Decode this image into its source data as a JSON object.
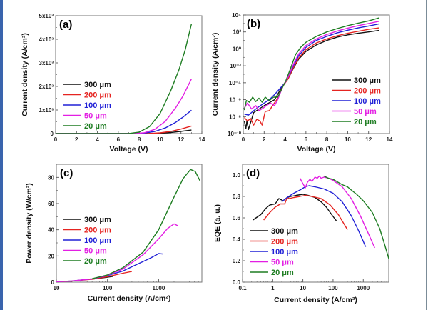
{
  "series_styles": [
    {
      "name": "300 μm",
      "color": "#111111"
    },
    {
      "name": "200 μm",
      "color": "#e52421"
    },
    {
      "name": "100 μm",
      "color": "#2020d6"
    },
    {
      "name": "50 μm",
      "color": "#e31fe3"
    },
    {
      "name": "20 μm",
      "color": "#1e7d22"
    }
  ],
  "chart_data": [
    {
      "id": "a",
      "panel_label": "(a)",
      "type": "line",
      "xlabel": "Voltage (V)",
      "ylabel": "Current density (A/cm²)",
      "xscale": "linear",
      "yscale": "linear",
      "xlim": [
        0,
        14
      ],
      "ylim": [
        0,
        5000
      ],
      "xticks": [
        0,
        2,
        4,
        6,
        8,
        10,
        12,
        14
      ],
      "xtick_labels": [
        "0",
        "2",
        "4",
        "6",
        "8",
        "10",
        "12",
        "14"
      ],
      "yticks": [
        0,
        1000,
        2000,
        3000,
        4000,
        5000
      ],
      "ytick_labels": [
        "0",
        "1x10³",
        "2x10³",
        "3x10³",
        "4x10³",
        "5x10³"
      ],
      "legend": "left-middle",
      "series": [
        {
          "name": "300 μm",
          "x": [
            0,
            8,
            9,
            10,
            11,
            12,
            13
          ],
          "y": [
            0,
            0,
            3,
            15,
            45,
            95,
            150
          ]
        },
        {
          "name": "200 μm",
          "x": [
            0,
            8,
            9,
            10,
            11,
            12,
            13
          ],
          "y": [
            0,
            0,
            6,
            30,
            90,
            190,
            320
          ]
        },
        {
          "name": "100 μm",
          "x": [
            0,
            7.5,
            8.5,
            9.5,
            10.5,
            11.5,
            12.2,
            13
          ],
          "y": [
            0,
            0,
            20,
            90,
            240,
            480,
            700,
            990
          ]
        },
        {
          "name": "50 μm",
          "x": [
            0,
            7.5,
            8.5,
            9.5,
            10.5,
            11.5,
            12.2,
            13
          ],
          "y": [
            0,
            0,
            35,
            180,
            520,
            1100,
            1600,
            2320
          ]
        },
        {
          "name": "20 μm",
          "x": [
            0,
            7,
            8,
            9,
            10,
            11,
            11.8,
            12.4,
            13
          ],
          "y": [
            0,
            0,
            60,
            300,
            850,
            1800,
            2700,
            3550,
            4650
          ]
        }
      ]
    },
    {
      "id": "b",
      "panel_label": "(b)",
      "type": "line",
      "xlabel": "Voltage (V)",
      "ylabel": "Current density (A/cm²)",
      "xscale": "linear",
      "yscale": "log",
      "xlim": [
        0,
        14
      ],
      "ylim": [
        1e-10,
        10000.0
      ],
      "xticks": [
        0,
        2,
        4,
        6,
        8,
        10,
        12,
        14
      ],
      "xtick_labels": [
        "0",
        "2",
        "4",
        "6",
        "8",
        "10",
        "12",
        "14"
      ],
      "yticks": [
        1e-10,
        1e-08,
        1e-06,
        0.0001,
        0.01,
        1,
        100,
        10000
      ],
      "ytick_labels": [
        "10⁻¹⁰",
        "10⁻⁸",
        "10⁻⁶",
        "10⁻⁴",
        "10⁻²",
        "10⁰",
        "10²",
        "10⁴"
      ],
      "legend": "bottom-right",
      "series": [
        {
          "name": "300 μm",
          "x": [
            0.1,
            0.25,
            0.35,
            0.5,
            1,
            2,
            3,
            3.8,
            4.3,
            4.8,
            5.3,
            6,
            7,
            8,
            9,
            10,
            11,
            12,
            13
          ],
          "y": [
            3e-09,
            4e-10,
            3e-09,
            3e-10,
            3e-08,
            2e-07,
            1e-06,
            5e-05,
            0.0003,
            0.005,
            0.06,
            0.5,
            3,
            10,
            25,
            45,
            70,
            100,
            150
          ]
        },
        {
          "name": "200 μm",
          "x": [
            0.1,
            0.4,
            0.7,
            1,
            1.3,
            1.6,
            1.8,
            2.1,
            2.5,
            2.8,
            3.2,
            3.8,
            4.3,
            4.8,
            5.3,
            6,
            7,
            8,
            9,
            10,
            11,
            12,
            13
          ],
          "y": [
            8e-09,
            3e-09,
            6e-09,
            1e-09,
            5e-09,
            3e-09,
            1e-09,
            4e-08,
            5e-08,
            2e-07,
            1e-06,
            4e-05,
            0.0003,
            0.006,
            0.08,
            0.8,
            5,
            15,
            35,
            70,
            120,
            200,
            300
          ]
        },
        {
          "name": "100 μm",
          "x": [
            0.1,
            0.5,
            1,
            1.5,
            2,
            2.5,
            3,
            3.5,
            4,
            4.4,
            4.8,
            5.3,
            6,
            7,
            8,
            9,
            10,
            11,
            12,
            13
          ],
          "y": [
            2e-08,
            1.5e-08,
            5e-08,
            1.5e-07,
            4e-07,
            1e-06,
            4e-06,
            2e-05,
            0.0001,
            0.0008,
            0.01,
            0.15,
            1.5,
            10,
            30,
            80,
            160,
            300,
            500,
            900
          ]
        },
        {
          "name": "50 μm",
          "x": [
            0.1,
            0.4,
            0.8,
            1.2,
            1.5,
            1.9,
            2.2,
            2.6,
            3,
            3.3,
            3.8,
            4.3,
            4.8,
            5.3,
            6,
            7,
            8,
            9,
            10,
            11,
            12,
            13
          ],
          "y": [
            1e-07,
            4e-07,
            8e-08,
            2e-07,
            5e-08,
            1e-07,
            2e-07,
            4e-07,
            2e-07,
            1e-06,
            4e-05,
            0.0005,
            0.015,
            0.25,
            2.5,
            15,
            50,
            130,
            280,
            550,
            1000,
            1800
          ]
        },
        {
          "name": "20 μm",
          "x": [
            0.1,
            0.3,
            0.6,
            0.9,
            1.2,
            1.5,
            1.8,
            2.1,
            2.5,
            2.9,
            3.3,
            3.7,
            4.1,
            4.5,
            5,
            5.5,
            6,
            7,
            8,
            9,
            10,
            11,
            12,
            13
          ],
          "y": [
            6e-08,
            8e-07,
            5e-07,
            2e-06,
            6e-07,
            1.5e-06,
            5e-07,
            2e-06,
            8e-07,
            2e-06,
            2e-06,
            2e-05,
            0.0002,
            0.004,
            0.2,
            1.5,
            6,
            30,
            100,
            250,
            550,
            1100,
            2000,
            4500
          ]
        }
      ]
    },
    {
      "id": "c",
      "panel_label": "(c)",
      "type": "line",
      "xlabel": "Current density (A/cm²)",
      "ylabel": "Power density (W/cm²)",
      "xscale": "log",
      "yscale": "linear",
      "xlim": [
        10,
        7000
      ],
      "ylim": [
        0,
        90
      ],
      "xticks": [
        10,
        100,
        1000
      ],
      "xtick_labels": [
        "10",
        "100",
        "1000"
      ],
      "yticks": [
        0,
        20,
        40,
        60,
        80
      ],
      "ytick_labels": [
        "0",
        "20",
        "40",
        "60",
        "80"
      ],
      "legend": "left-middle",
      "series": [
        {
          "name": "300 μm",
          "x": [
            50,
            70,
            100,
            130
          ],
          "y": [
            2.3,
            3.0,
            3.8,
            4.5
          ]
        },
        {
          "name": "200 μm",
          "x": [
            10,
            20,
            50,
            100,
            200,
            300
          ],
          "y": [
            0.3,
            0.8,
            2.2,
            4.2,
            6.8,
            8.2
          ]
        },
        {
          "name": "100 μm",
          "x": [
            10,
            20,
            50,
            100,
            200,
            400,
            700,
            1000,
            1200
          ],
          "y": [
            0.4,
            0.9,
            2.5,
            5,
            8.5,
            14,
            18.5,
            21.8,
            21.5
          ]
        },
        {
          "name": "50 μm",
          "x": [
            10,
            20,
            50,
            100,
            200,
            500,
            1000,
            1500,
            2000,
            2400
          ],
          "y": [
            0.4,
            0.9,
            2.5,
            5.3,
            10,
            21,
            33,
            41,
            44.5,
            43
          ]
        },
        {
          "name": "20 μm",
          "x": [
            50,
            100,
            200,
            500,
            1000,
            2000,
            3000,
            4200,
            5200,
            6500
          ],
          "y": [
            2.6,
            5.5,
            11,
            23,
            40,
            65,
            79,
            86,
            84.5,
            77
          ]
        }
      ]
    },
    {
      "id": "d",
      "panel_label": "(d)",
      "type": "line",
      "xlabel": "Current density (A/cm²)",
      "ylabel": "EQE (a. u.)",
      "xscale": "log",
      "yscale": "linear",
      "xlim": [
        0.1,
        7000
      ],
      "ylim": [
        0,
        1.1
      ],
      "xticks": [
        0.1,
        1,
        10,
        100,
        1000
      ],
      "xtick_labels": [
        "0.1",
        "1",
        "10",
        "100",
        "1000"
      ],
      "yticks": [
        0,
        0.2,
        0.4,
        0.6,
        0.8,
        1.0
      ],
      "ytick_labels": [
        "0.0",
        "0.2",
        "0.4",
        "0.6",
        "0.8",
        "1.0"
      ],
      "legend": "bottom-left",
      "series": [
        {
          "name": "300 μm",
          "x": [
            0.22,
            0.4,
            0.6,
            0.8,
            1.2,
            1.6,
            2.2,
            3,
            4,
            6,
            10,
            15,
            25,
            40,
            60,
            90,
            130
          ],
          "y": [
            0.58,
            0.63,
            0.69,
            0.72,
            0.73,
            0.78,
            0.76,
            0.79,
            0.8,
            0.81,
            0.82,
            0.81,
            0.79,
            0.75,
            0.7,
            0.63,
            0.57
          ]
        },
        {
          "name": "200 μm",
          "x": [
            0.5,
            0.8,
            1.2,
            1.8,
            2.5,
            3,
            3.5,
            5,
            8,
            12,
            20,
            40,
            80,
            150,
            300
          ],
          "y": [
            0.58,
            0.65,
            0.7,
            0.73,
            0.73,
            0.79,
            0.78,
            0.79,
            0.8,
            0.81,
            0.8,
            0.78,
            0.72,
            0.63,
            0.49
          ]
        },
        {
          "name": "100 μm",
          "x": [
            2,
            3,
            5,
            8,
            12,
            16,
            25,
            50,
            100,
            200,
            400,
            700,
            1200
          ],
          "y": [
            0.75,
            0.79,
            0.83,
            0.86,
            0.89,
            0.9,
            0.89,
            0.87,
            0.83,
            0.75,
            0.62,
            0.48,
            0.33
          ]
        },
        {
          "name": "50 μm",
          "x": [
            8,
            10,
            12,
            14,
            17,
            20,
            25,
            30,
            35,
            40,
            50,
            70,
            100,
            200,
            400,
            800,
            1500,
            2400
          ],
          "y": [
            0.97,
            0.92,
            0.88,
            0.93,
            0.96,
            0.94,
            0.98,
            0.97,
            0.99,
            0.97,
            0.98,
            0.97,
            0.95,
            0.89,
            0.78,
            0.62,
            0.45,
            0.32
          ]
        },
        {
          "name": "20 μm",
          "x": [
            50,
            70,
            100,
            150,
            200,
            300,
            400,
            600,
            1000,
            2000,
            3500,
            5000,
            7000
          ],
          "y": [
            0.99,
            0.97,
            0.96,
            0.93,
            0.91,
            0.89,
            0.86,
            0.82,
            0.76,
            0.65,
            0.5,
            0.36,
            0.22
          ]
        }
      ]
    }
  ]
}
